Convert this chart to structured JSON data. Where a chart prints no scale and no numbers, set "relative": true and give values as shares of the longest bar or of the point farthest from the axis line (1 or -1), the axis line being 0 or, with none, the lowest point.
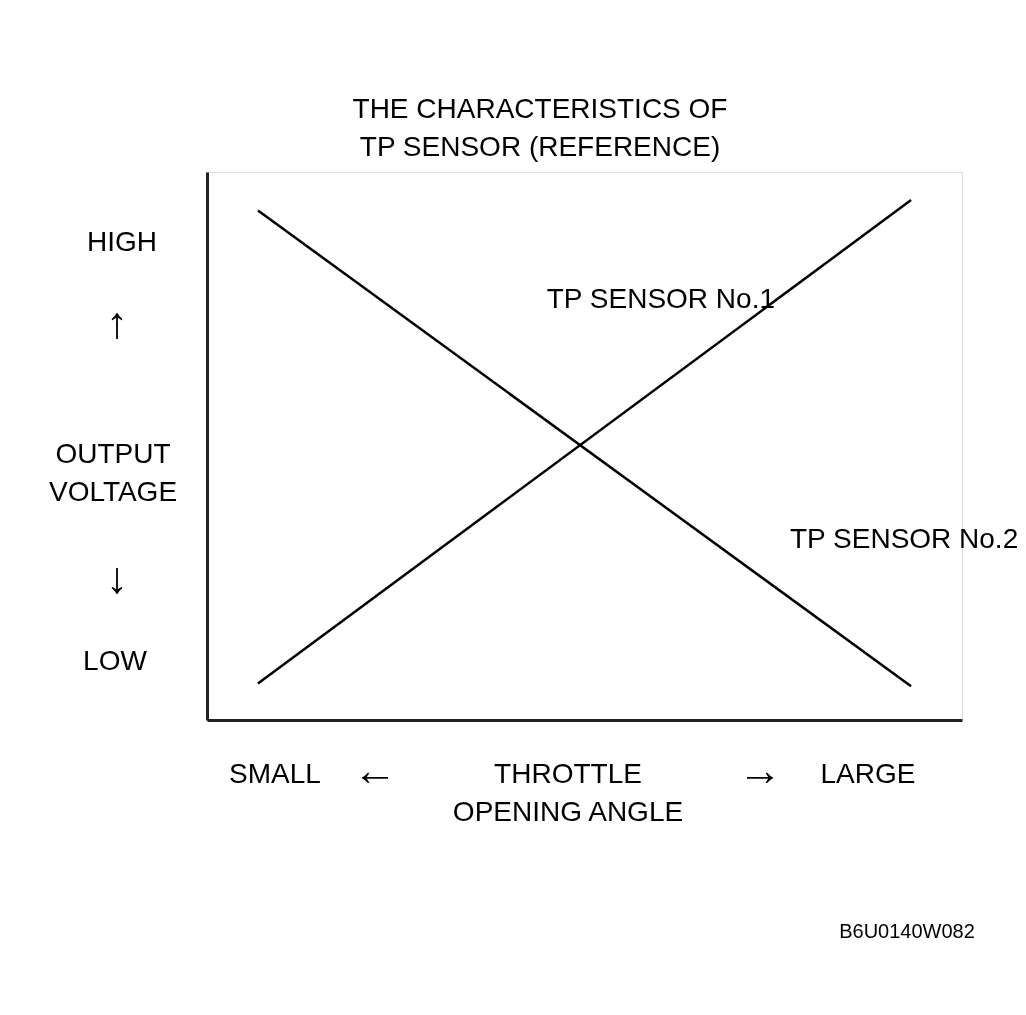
{
  "chart_data": {
    "type": "line",
    "relative": true,
    "title": "THE CHARACTERISTICS OF\nTP SENSOR (REFERENCE)",
    "categories": [
      null,
      null
    ],
    "series": [
      {
        "name": "TP SENSOR No.1",
        "color": "#000000",
        "values": [
          0.07,
          1
        ]
      },
      {
        "name": "TP SENSOR No.2",
        "color": "#000000",
        "values": [
          0.98,
          0.065
        ]
      }
    ],
    "annotations": [
      "HIGH",
      "↑",
      "OUTPUT\nVOLTAGE",
      "↓",
      "LOW",
      "SMALL",
      "←",
      "THROTTLE\nOPENING ANGLE",
      "→",
      "LARGE",
      "B6U0140W082"
    ],
    "marker": "none",
    "line_style": "solid"
  }
}
